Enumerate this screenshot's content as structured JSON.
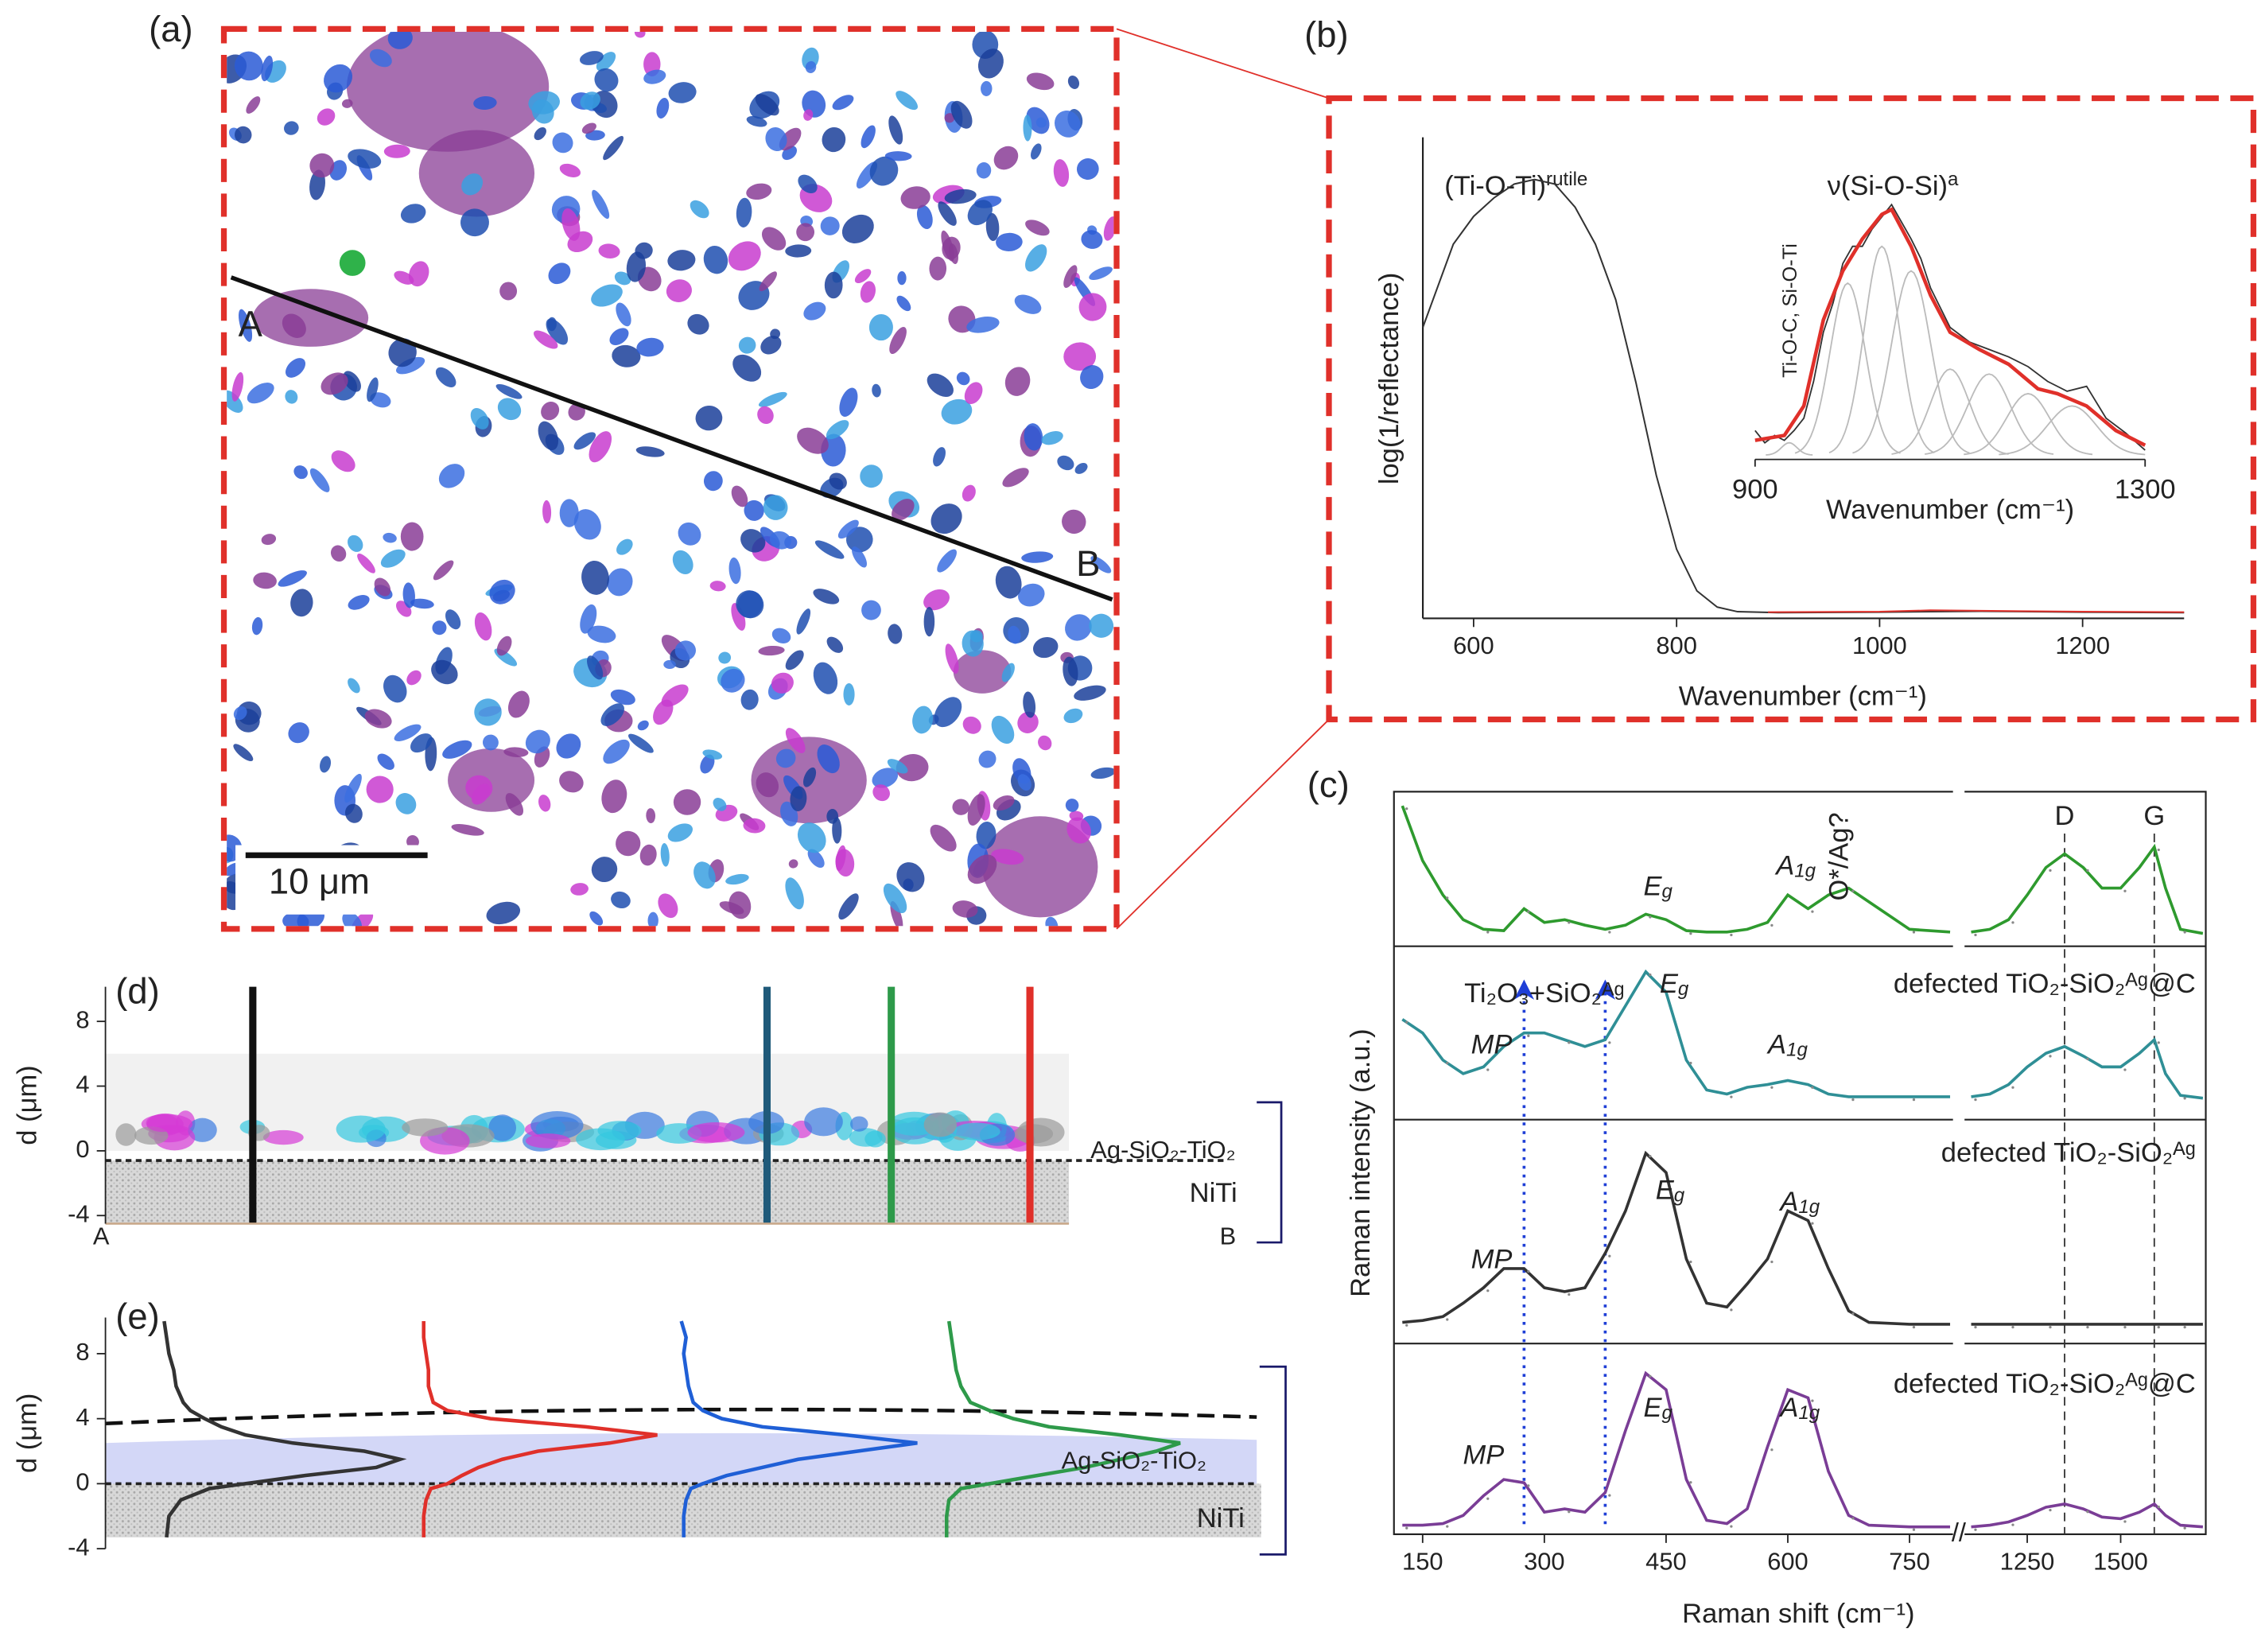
{
  "image_panel": {
    "label": "(a)",
    "point_a": "A",
    "point_b": "B",
    "scale_bar": "10 μm"
  },
  "chart_data": [
    {
      "type": "line",
      "label": "(b)",
      "x_label": "Wavenumber (cm⁻¹)",
      "y_label": "log(1/reflectance)",
      "annotation": {
        "text": "(Ti-O-Ti)",
        "sup": "rutile"
      },
      "xlim": [
        550,
        1300
      ],
      "xticks": [
        600,
        800,
        1000,
        1200
      ],
      "ylim": [
        0,
        1
      ],
      "series": [
        {
          "color": "#333333",
          "x": [
            550,
            560,
            580,
            600,
            620,
            640,
            660,
            680,
            700,
            720,
            740,
            760,
            780,
            800,
            820,
            840,
            860,
            900,
            1000,
            1100,
            1200,
            1300
          ],
          "values": [
            0.62,
            0.68,
            0.8,
            0.86,
            0.9,
            0.93,
            0.94,
            0.93,
            0.88,
            0.8,
            0.68,
            0.5,
            0.3,
            0.14,
            0.05,
            0.015,
            0.005,
            0.003,
            0.004,
            0.006,
            0.004,
            0.003
          ]
        },
        {
          "color": "#e0302a",
          "x": [
            890,
            1000,
            1050,
            1100,
            1200,
            1300
          ],
          "values": [
            0.004,
            0.005,
            0.008,
            0.007,
            0.005,
            0.004
          ]
        }
      ],
      "inset": {
        "x_label": "Wavenumber (cm⁻¹)",
        "xlim": [
          900,
          1300
        ],
        "xticks": [
          900,
          1300
        ],
        "ylim": [
          0,
          1
        ],
        "annotation": {
          "text": "ν(Si-O-Si)",
          "sup": "a"
        },
        "side_label": "Ti-O-C, Si-O-Ti",
        "series": [
          {
            "color": "#333333",
            "x": [
              900,
              910,
              920,
              930,
              940,
              950,
              960,
              970,
              980,
              990,
              1000,
              1010,
              1020,
              1030,
              1040,
              1050,
              1060,
              1070,
              1080,
              1090,
              1100,
              1120,
              1140,
              1160,
              1180,
              1200,
              1220,
              1240,
              1260,
              1280,
              1300
            ],
            "values": [
              0.1,
              0.05,
              0.08,
              0.06,
              0.1,
              0.15,
              0.3,
              0.5,
              0.62,
              0.78,
              0.85,
              0.85,
              0.92,
              0.97,
              1.02,
              0.95,
              0.88,
              0.8,
              0.68,
              0.6,
              0.52,
              0.46,
              0.43,
              0.4,
              0.36,
              0.3,
              0.26,
              0.28,
              0.15,
              0.09,
              0.02
            ]
          },
          {
            "color": "#e0302a",
            "x": [
              900,
              930,
              950,
              970,
              990,
              1010,
              1030,
              1040,
              1060,
              1080,
              1100,
              1130,
              1160,
              1190,
              1210,
              1240,
              1270,
              1300
            ],
            "values": [
              0.06,
              0.08,
              0.2,
              0.55,
              0.75,
              0.88,
              0.98,
              1.0,
              0.85,
              0.65,
              0.5,
              0.43,
              0.37,
              0.27,
              0.25,
              0.2,
              0.1,
              0.04
            ]
          }
        ],
        "components": [
          {
            "center": 935,
            "height": 0.05,
            "width": 8
          },
          {
            "center": 995,
            "height": 0.7,
            "width": 18
          },
          {
            "center": 1030,
            "height": 0.85,
            "width": 18
          },
          {
            "center": 1060,
            "height": 0.75,
            "width": 20
          },
          {
            "center": 1100,
            "height": 0.35,
            "width": 20
          },
          {
            "center": 1140,
            "height": 0.33,
            "width": 22
          },
          {
            "center": 1180,
            "height": 0.25,
            "width": 22
          },
          {
            "center": 1225,
            "height": 0.2,
            "width": 25
          }
        ]
      }
    },
    {
      "type": "stacked-spectra",
      "label": "(c)",
      "x_label": "Raman shift (cm⁻¹)",
      "y_label": "Raman intensity (a.u.)",
      "x_segments": [
        [
          120,
          800
        ],
        [
          1090,
          1720
        ]
      ],
      "xticks": [
        150,
        300,
        450,
        600,
        750,
        1250,
        1500
      ],
      "x": [
        125,
        150,
        175,
        200,
        225,
        250,
        275,
        300,
        325,
        350,
        375,
        400,
        425,
        450,
        475,
        500,
        525,
        550,
        575,
        600,
        625,
        650,
        675,
        700,
        750,
        800,
        1100,
        1150,
        1200,
        1250,
        1300,
        1350,
        1400,
        1450,
        1500,
        1550,
        1590,
        1620,
        1660,
        1720
      ],
      "lines": [
        {
          "label": "D",
          "x": 1350
        },
        {
          "label": "G",
          "x": 1590
        }
      ],
      "arrows_x": [
        275,
        375
      ],
      "series": [
        {
          "color": "#2e9a2e",
          "values": [
            0.95,
            0.55,
            0.3,
            0.12,
            0.05,
            0.04,
            0.2,
            0.1,
            0.12,
            0.08,
            0.05,
            0.08,
            0.16,
            0.12,
            0.04,
            0.03,
            0.03,
            0.05,
            0.1,
            0.3,
            0.2,
            0.3,
            0.35,
            0.25,
            0.05,
            0.03,
            0.03,
            0.05,
            0.12,
            0.3,
            0.5,
            0.6,
            0.5,
            0.35,
            0.35,
            0.5,
            0.65,
            0.35,
            0.05,
            0.02
          ],
          "labels": [
            {
              "text": "E",
              "sub": "g",
              "x": 440,
              "y": 0.35
            },
            {
              "text": "A",
              "sub": "1g",
              "x": 610,
              "y": 0.5
            },
            {
              "text": "O*/Ag?",
              "x": 665,
              "y": 0.58,
              "vertical": true
            }
          ]
        },
        {
          "name": "defected TiO₂-SiO₂ᴬᵍ@C",
          "color": "#2f8f96",
          "values": [
            0.6,
            0.5,
            0.3,
            0.2,
            0.25,
            0.4,
            0.5,
            0.5,
            0.45,
            0.4,
            0.45,
            0.7,
            0.95,
            0.8,
            0.3,
            0.08,
            0.05,
            0.1,
            0.12,
            0.15,
            0.12,
            0.05,
            0.03,
            0.03,
            0.03,
            0.03,
            0.03,
            0.05,
            0.12,
            0.25,
            0.35,
            0.4,
            0.33,
            0.25,
            0.25,
            0.35,
            0.45,
            0.2,
            0.04,
            0.02
          ],
          "labels": [
            {
              "text": "MP",
              "x": 235,
              "y": 0.4
            },
            {
              "text": "Ti₂O₃+SiO₂ᴬᵍ",
              "x": 300,
              "y": 0.78,
              "small": true
            },
            {
              "text": "E",
              "sub": "g",
              "x": 460,
              "y": 0.85
            },
            {
              "text": "A",
              "sub": "1g",
              "x": 600,
              "y": 0.4
            }
          ]
        },
        {
          "name": "defected TiO₂-SiO₂ᴬᵍ",
          "color": "#333333",
          "values": [
            0.02,
            0.03,
            0.05,
            0.12,
            0.2,
            0.3,
            0.3,
            0.2,
            0.18,
            0.2,
            0.38,
            0.6,
            0.9,
            0.8,
            0.35,
            0.12,
            0.1,
            0.22,
            0.35,
            0.6,
            0.55,
            0.3,
            0.08,
            0.02,
            0.01,
            0.01,
            0.01,
            0.01,
            0.01,
            0.01,
            0.01,
            0.01,
            0.01,
            0.01,
            0.01,
            0.01,
            0.01,
            0.01,
            0.01,
            0.01
          ],
          "labels": [
            {
              "text": "MP",
              "x": 235,
              "y": 0.34
            },
            {
              "text": "E",
              "sub": "g",
              "x": 455,
              "y": 0.7
            },
            {
              "text": "A",
              "sub": "1g",
              "x": 615,
              "y": 0.64
            }
          ]
        },
        {
          "name": "defected TiO₂-SiO₂ᴬᵍ@C",
          "color": "#7a3d96",
          "values": [
            0.02,
            0.02,
            0.03,
            0.08,
            0.2,
            0.3,
            0.28,
            0.1,
            0.12,
            0.1,
            0.22,
            0.6,
            0.95,
            0.85,
            0.3,
            0.05,
            0.03,
            0.12,
            0.5,
            0.85,
            0.8,
            0.35,
            0.08,
            0.02,
            0.01,
            0.01,
            0.01,
            0.02,
            0.04,
            0.08,
            0.13,
            0.15,
            0.12,
            0.07,
            0.06,
            0.1,
            0.15,
            0.08,
            0.02,
            0.01
          ],
          "labels": [
            {
              "text": "MP",
              "x": 225,
              "y": 0.44
            },
            {
              "text": "E",
              "sub": "g",
              "x": 440,
              "y": 0.73
            },
            {
              "text": "A",
              "sub": "1g",
              "x": 615,
              "y": 0.73
            }
          ]
        }
      ]
    },
    {
      "type": "cross-section",
      "label": "(d)",
      "y_label": "d (μm)",
      "ylim": [
        -4.5,
        10.5
      ],
      "yticks": [
        -4,
        0,
        4,
        8
      ],
      "start_label": "A",
      "end_label": "B",
      "layers": [
        "Ag-SiO₂-TiO₂",
        "NiTi"
      ]
    },
    {
      "type": "depth-profile",
      "label": "(e)",
      "y_label": "d (μm)",
      "ylim": [
        -4,
        10
      ],
      "yticks": [
        -4,
        0,
        4,
        8
      ],
      "layers": [
        "Ag-SiO₂-TiO₂",
        "NiTi"
      ],
      "depths": [
        -3.3,
        -2,
        -1,
        -0.3,
        0,
        0.5,
        1,
        1.5,
        2,
        2.5,
        3,
        3.5,
        4,
        4.5,
        5,
        6,
        7,
        8,
        9,
        10
      ],
      "series": [
        {
          "color": "#333333",
          "values": [
            0.02,
            0.03,
            0.08,
            0.2,
            0.35,
            0.6,
            0.9,
            1.0,
            0.85,
            0.55,
            0.35,
            0.25,
            0.18,
            0.12,
            0.09,
            0.06,
            0.05,
            0.03,
            0.02,
            0.01
          ]
        },
        {
          "color": "#e0302a",
          "values": [
            0.02,
            0.02,
            0.03,
            0.05,
            0.12,
            0.18,
            0.25,
            0.35,
            0.5,
            0.8,
            1.0,
            0.7,
            0.3,
            0.12,
            0.06,
            0.04,
            0.04,
            0.03,
            0.02,
            0.02
          ]
        },
        {
          "color": "#1f5fd6",
          "values": [
            0.02,
            0.02,
            0.03,
            0.05,
            0.1,
            0.2,
            0.35,
            0.5,
            0.75,
            1.0,
            0.7,
            0.35,
            0.18,
            0.1,
            0.06,
            0.04,
            0.03,
            0.02,
            0.03,
            0.01
          ]
        },
        {
          "color": "#2e9a4a",
          "values": [
            0.02,
            0.02,
            0.03,
            0.08,
            0.2,
            0.4,
            0.6,
            0.75,
            0.9,
            1.0,
            0.75,
            0.45,
            0.3,
            0.2,
            0.12,
            0.08,
            0.06,
            0.05,
            0.04,
            0.03
          ]
        }
      ]
    }
  ]
}
